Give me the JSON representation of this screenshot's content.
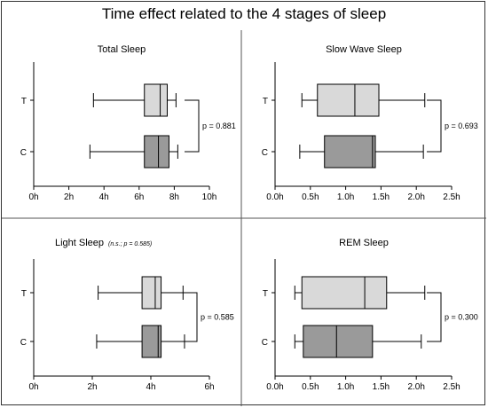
{
  "title": "Time effect related to the 4 stages of sleep",
  "colors": {
    "T_box": "#d9d9d9",
    "C_box": "#9a9a9a",
    "line": "#000000",
    "divider": "#555555"
  },
  "chart_data": [
    {
      "type": "box",
      "title": "Total Sleep",
      "note": "",
      "categories": [
        "T",
        "C"
      ],
      "xlim": [
        0,
        10
      ],
      "xticks": [
        "0h",
        "2h",
        "4h",
        "6h",
        "8h",
        "10h"
      ],
      "series": [
        {
          "category": "T",
          "whisker_low": 3.4,
          "q1": 6.3,
          "median": 7.2,
          "q3": 7.6,
          "whisker_high": 8.1
        },
        {
          "category": "C",
          "whisker_low": 3.2,
          "q1": 6.3,
          "median": 7.1,
          "q3": 7.7,
          "whisker_high": 8.2
        }
      ],
      "p_value": "p = 0.881"
    },
    {
      "type": "box",
      "title": "Slow Wave Sleep",
      "note": "",
      "categories": [
        "T",
        "C"
      ],
      "xlim": [
        0,
        2.5
      ],
      "xticks": [
        "0.0h",
        "0.5h",
        "1.0h",
        "1.5h",
        "2.0h",
        "2.5h"
      ],
      "series": [
        {
          "category": "T",
          "whisker_low": 0.38,
          "q1": 0.6,
          "median": 1.13,
          "q3": 1.47,
          "whisker_high": 2.12
        },
        {
          "category": "C",
          "whisker_low": 0.35,
          "q1": 0.7,
          "median": 1.38,
          "q3": 1.42,
          "whisker_high": 2.1
        }
      ],
      "p_value": "p = 0.693"
    },
    {
      "type": "box",
      "title": "Light Sleep",
      "note": "(n.s.; p = 0.585)",
      "categories": [
        "T",
        "C"
      ],
      "xlim": [
        0,
        6
      ],
      "xticks": [
        "0h",
        "2h",
        "4h",
        "6h"
      ],
      "series": [
        {
          "category": "T",
          "whisker_low": 2.2,
          "q1": 3.7,
          "median": 4.15,
          "q3": 4.35,
          "whisker_high": 5.1
        },
        {
          "category": "C",
          "whisker_low": 2.15,
          "q1": 3.7,
          "median": 4.25,
          "q3": 4.35,
          "whisker_high": 5.15
        }
      ],
      "p_value": "p = 0.585"
    },
    {
      "type": "box",
      "title": "REM Sleep",
      "note": "",
      "categories": [
        "T",
        "C"
      ],
      "xlim": [
        0,
        2.5
      ],
      "xticks": [
        "0.0h",
        "0.5h",
        "1.0h",
        "1.5h",
        "2.0h",
        "2.5h"
      ],
      "series": [
        {
          "category": "T",
          "whisker_low": 0.28,
          "q1": 0.38,
          "median": 1.27,
          "q3": 1.58,
          "whisker_high": 2.12
        },
        {
          "category": "C",
          "whisker_low": 0.28,
          "q1": 0.4,
          "median": 0.87,
          "q3": 1.38,
          "whisker_high": 2.07
        }
      ],
      "p_value": "p = 0.300"
    }
  ]
}
